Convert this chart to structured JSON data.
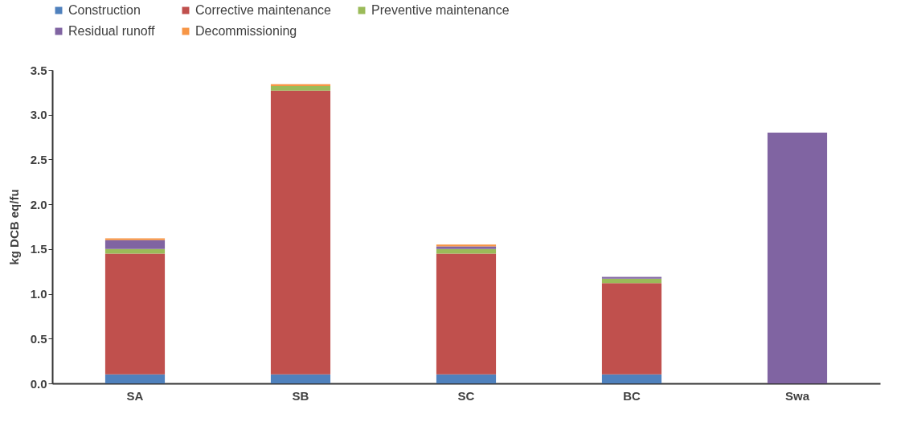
{
  "chart_data": {
    "type": "bar",
    "stacked": true,
    "ylabel": "kg DCB  eq/fu",
    "categories": [
      "SA",
      "SB",
      "SC",
      "BC",
      "Swa"
    ],
    "series": [
      {
        "name": "Construction",
        "color": "#4f81bd",
        "values": [
          0.1,
          0.1,
          0.1,
          0.1,
          0
        ]
      },
      {
        "name": "Corrective maintenance",
        "color": "#c0504d",
        "values": [
          1.35,
          3.17,
          1.35,
          1.02,
          0
        ]
      },
      {
        "name": "Preventive maintenance",
        "color": "#9bbb59",
        "values": [
          0.05,
          0.05,
          0.05,
          0.05,
          0
        ]
      },
      {
        "name": "Residual runoff",
        "color": "#8064a2",
        "values": [
          0.1,
          0,
          0.03,
          0.02,
          2.8
        ]
      },
      {
        "name": "Decommissioning",
        "color": "#f79646",
        "values": [
          0.02,
          0.02,
          0.02,
          0,
          0
        ]
      }
    ],
    "ylim": [
      0,
      3.5
    ],
    "yticks": [
      {
        "value": 0,
        "label": "0.0"
      },
      0.5,
      {
        "value": 1,
        "label": "1.0"
      },
      1.5,
      {
        "value": 2,
        "label": "2.0"
      },
      2.5,
      {
        "value": 3,
        "label": "3.0"
      },
      3.5
    ],
    "grid": false,
    "legend": "top"
  }
}
